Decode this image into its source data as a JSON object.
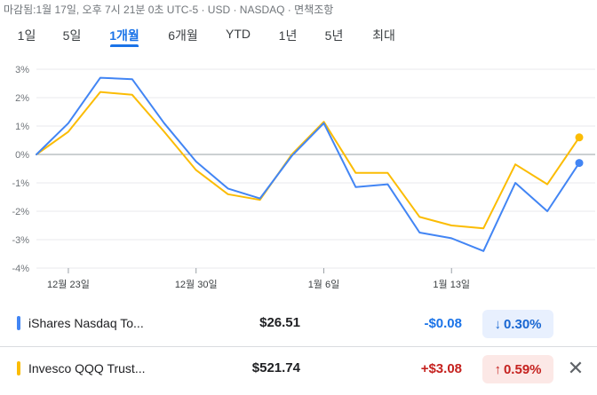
{
  "meta": "마감됨:1월 17일, 오후 7시 21분 0초 UTC-5 · USD · NASDAQ · 면책조항",
  "tabs": [
    "1일",
    "5일",
    "1개월",
    "6개월",
    "YTD",
    "1년",
    "5년",
    "최대"
  ],
  "active_tab": "1개월",
  "colors": {
    "blue": "#4285f4",
    "yellow": "#fbbc04",
    "accent": "#1a73e8",
    "up": "#c5221f"
  },
  "chart_data": {
    "type": "line",
    "title": "",
    "xlabel": "",
    "ylabel": "",
    "ylim": [
      -4,
      3
    ],
    "yticks": [
      "3%",
      "2%",
      "1%",
      "0%",
      "-1%",
      "-2%",
      "-3%",
      "-4%"
    ],
    "xticks": [
      "12월 23일",
      "12월 30일",
      "1월 6일",
      "1월 13일"
    ],
    "grid": true,
    "series": [
      {
        "name": "iShares Nasdaq To...",
        "color": "#4285f4",
        "values": [
          0.0,
          1.1,
          2.7,
          2.65,
          1.1,
          -0.25,
          -1.2,
          -1.55,
          -0.05,
          1.1,
          -1.15,
          -1.05,
          -2.75,
          -2.95,
          -3.4,
          -1.0,
          -2.0,
          -0.3
        ]
      },
      {
        "name": "Invesco QQQ Trust...",
        "color": "#fbbc04",
        "values": [
          0.0,
          0.8,
          2.2,
          2.1,
          0.8,
          -0.55,
          -1.4,
          -1.6,
          0.0,
          1.15,
          -0.65,
          -0.65,
          -2.2,
          -2.5,
          -2.6,
          -0.35,
          -1.05,
          0.6
        ]
      }
    ]
  },
  "rows": [
    {
      "name": "iShares Nasdaq To...",
      "price": "$26.51",
      "change": "-$0.08",
      "pct": "0.30%",
      "arrow": "↓",
      "color": "#4285f4",
      "dir": "neg"
    },
    {
      "name": "Invesco QQQ Trust...",
      "price": "$521.74",
      "change": "+$3.08",
      "pct": "0.59%",
      "arrow": "↑",
      "color": "#fbbc04",
      "dir": "pos"
    }
  ],
  "close_label": "✕"
}
